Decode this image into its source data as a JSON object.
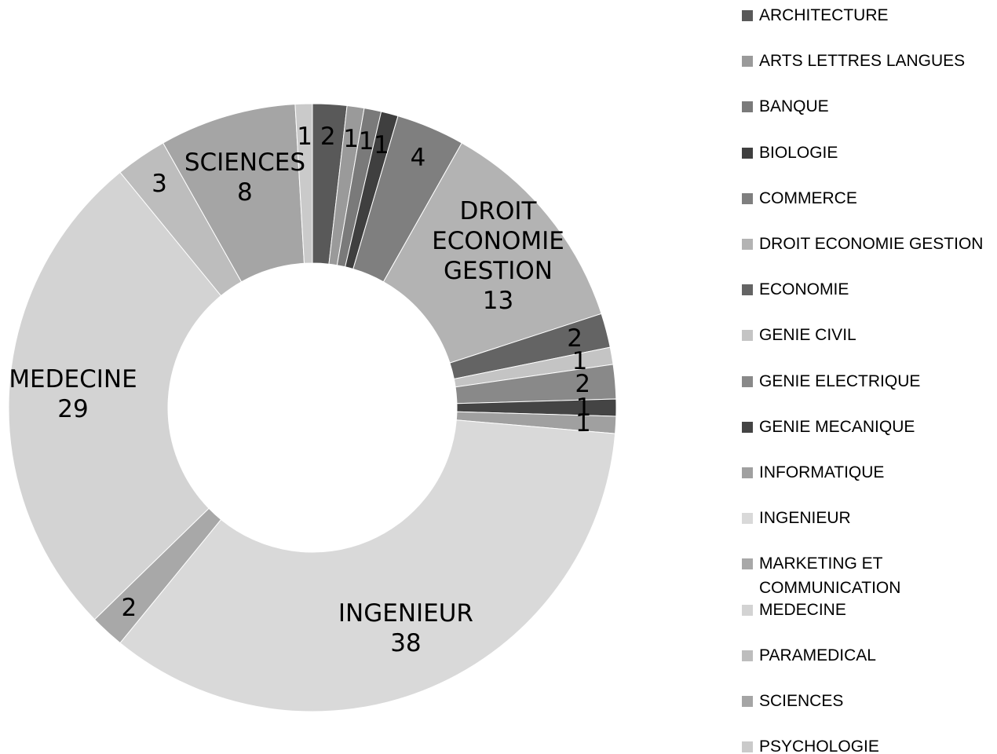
{
  "chart_data": {
    "type": "donut",
    "categories": [
      "ARCHITECTURE",
      "ARTS LETTRES LANGUES",
      "BANQUE",
      "BIOLOGIE",
      "COMMERCE",
      "DROIT ECONOMIE GESTION",
      "ECONOMIE",
      "GENIE CIVIL",
      "GENIE ELECTRIQUE",
      "GENIE MECANIQUE",
      "INFORMATIQUE",
      "INGENIEUR",
      "MARKETING ET COMMUNICATION",
      "MEDECINE",
      "PARAMEDICAL",
      "SCIENCES",
      "PSYCHOLOGIE"
    ],
    "values": [
      2,
      1,
      1,
      1,
      4,
      13,
      2,
      1,
      2,
      1,
      1,
      38,
      2,
      29,
      3,
      8,
      1
    ],
    "colors": [
      "#595959",
      "#9a9a9a",
      "#7a7a7a",
      "#3f3f3f",
      "#7f7f7f",
      "#b3b3b3",
      "#646464",
      "#c4c4c4",
      "#898989",
      "#444444",
      "#a0a0a0",
      "#d9d9d9",
      "#a8a8a8",
      "#d3d3d3",
      "#bdbdbd",
      "#a5a5a5",
      "#cacaca"
    ],
    "legend": "right"
  }
}
